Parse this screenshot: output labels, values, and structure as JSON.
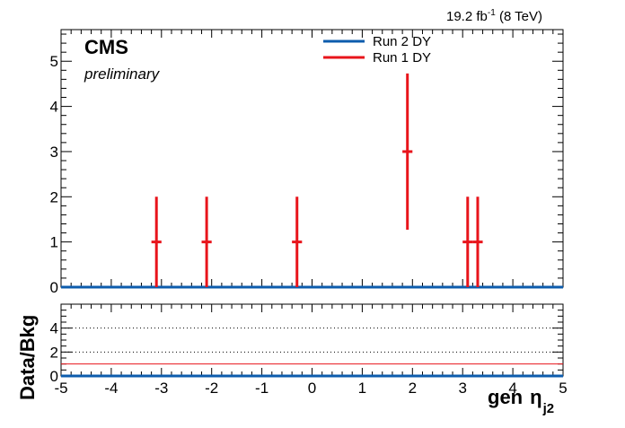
{
  "chart_data": [
    {
      "type": "scatter",
      "subtype": "histogram-with-error-bars",
      "header": {
        "lumi": "19.2 fb",
        "lumi_exp": "-1",
        "energy": " (8 TeV)",
        "experiment": "CMS",
        "status": "preliminary"
      },
      "xlim": [
        -5,
        5
      ],
      "ylim": [
        0,
        5.7
      ],
      "y_ticks": [
        0,
        1,
        2,
        3,
        4,
        5
      ],
      "legend_position": "top-center",
      "series": [
        {
          "name": "Run 2 DY",
          "color": "#0d5cad",
          "kind": "line",
          "x": [
            -5,
            5
          ],
          "y": [
            0,
            0
          ]
        },
        {
          "name": "Run 1 DY",
          "color": "#e8141b",
          "kind": "points-with-errors",
          "bin_width": 0.2,
          "x": [
            -3.1,
            -2.1,
            -0.3,
            1.9,
            3.1,
            3.3
          ],
          "y": [
            1,
            1,
            1,
            3,
            1,
            1
          ],
          "yerr_low": [
            1,
            1,
            1,
            1.73,
            1,
            1
          ],
          "yerr_high": [
            1,
            1,
            1,
            1.73,
            1,
            1
          ]
        }
      ]
    },
    {
      "type": "line",
      "ylabel": "Data/Bkg",
      "xlabel_main": "gen",
      "xlabel_symbol": "η",
      "xlabel_sub": "j2",
      "xlim": [
        -5,
        5
      ],
      "ylim": [
        0,
        6
      ],
      "x_ticks": [
        -5,
        -4,
        -3,
        -2,
        -1,
        0,
        1,
        2,
        3,
        4,
        5
      ],
      "y_ticks": [
        0,
        2,
        4
      ],
      "grid_dotted_y": [
        2,
        4
      ],
      "series": [
        {
          "color": "#e8141b",
          "x": [
            -5,
            5
          ],
          "y": [
            1,
            1
          ]
        },
        {
          "color": "#0d5cad",
          "x": [
            -5,
            5
          ],
          "y": [
            0,
            0
          ]
        }
      ]
    }
  ]
}
